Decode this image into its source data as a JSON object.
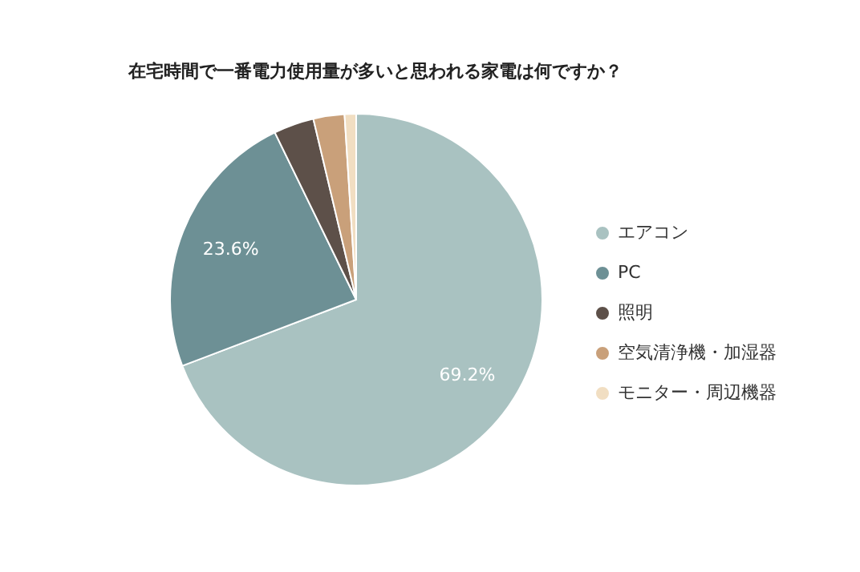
{
  "chart_data": {
    "type": "pie",
    "title": "在宅時間で一番電力使用量が多いと思われる家電は何ですか？",
    "categories": [
      "エアコン",
      "PC",
      "照明",
      "空気清浄機・加湿器",
      "モニター・周辺機器"
    ],
    "values": [
      69.2,
      23.6,
      3.5,
      2.7,
      1.0
    ],
    "colors": [
      "#a9c2c1",
      "#6d9095",
      "#5d5049",
      "#c9a07a",
      "#f1dec2"
    ],
    "value_labels": [
      "69.2%",
      "23.6%",
      null,
      null,
      null
    ],
    "legend": "right"
  }
}
